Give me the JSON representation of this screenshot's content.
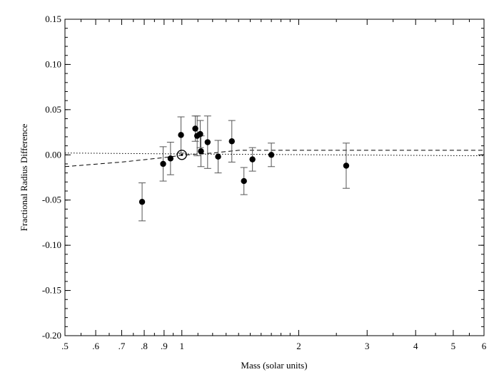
{
  "chart_data": {
    "type": "scatter",
    "title": "",
    "xlabel": "Mass (solar units)",
    "ylabel": "Fractional Radius Difference",
    "x_scale": "log",
    "xlim": [
      0.5,
      6
    ],
    "ylim": [
      -0.2,
      0.15
    ],
    "x_ticks": [
      {
        "value": 0.5,
        "label": ".5"
      },
      {
        "value": 0.6,
        "label": ".6"
      },
      {
        "value": 0.7,
        "label": ".7"
      },
      {
        "value": 0.8,
        "label": ".8"
      },
      {
        "value": 0.9,
        "label": ".9"
      },
      {
        "value": 1,
        "label": "1"
      },
      {
        "value": 2,
        "label": "2"
      },
      {
        "value": 3,
        "label": "3"
      },
      {
        "value": 4,
        "label": "4"
      },
      {
        "value": 5,
        "label": "5"
      },
      {
        "value": 6,
        "label": "6"
      }
    ],
    "y_ticks": [
      {
        "value": 0.15,
        "label": "0.15"
      },
      {
        "value": 0.1,
        "label": "0.10"
      },
      {
        "value": 0.05,
        "label": "0.05"
      },
      {
        "value": 0.0,
        "label": "0.00"
      },
      {
        "value": -0.05,
        "label": "-0.05"
      },
      {
        "value": -0.1,
        "label": "-0.10"
      },
      {
        "value": -0.15,
        "label": "-0.15"
      },
      {
        "value": -0.2,
        "label": "-0.20"
      }
    ],
    "grid": false,
    "points": [
      {
        "x": 0.79,
        "y": -0.052,
        "err": 0.021
      },
      {
        "x": 0.895,
        "y": -0.01,
        "err": 0.019
      },
      {
        "x": 0.935,
        "y": -0.004,
        "err": 0.018
      },
      {
        "x": 0.995,
        "y": 0.022,
        "err": 0.02
      },
      {
        "x": 1.083,
        "y": 0.029,
        "err": 0.014
      },
      {
        "x": 1.095,
        "y": 0.021,
        "err": 0.022
      },
      {
        "x": 1.115,
        "y": 0.023,
        "err": 0.015
      },
      {
        "x": 1.12,
        "y": 0.004,
        "err": 0.017
      },
      {
        "x": 1.165,
        "y": 0.014,
        "err": 0.029
      },
      {
        "x": 1.24,
        "y": -0.002,
        "err": 0.018
      },
      {
        "x": 1.345,
        "y": 0.015,
        "err": 0.023
      },
      {
        "x": 1.445,
        "y": -0.029,
        "err": 0.015
      },
      {
        "x": 1.52,
        "y": -0.005,
        "err": 0.013
      },
      {
        "x": 1.7,
        "y": 0.0,
        "err": 0.013
      },
      {
        "x": 2.65,
        "y": -0.012,
        "err": 0.025
      }
    ],
    "sun": {
      "x": 1.0,
      "y": 0.0
    },
    "curves": [
      {
        "style": "dotted",
        "x": [
          0.5,
          1.0,
          6.0
        ],
        "y": [
          0.002,
          0.001,
          -0.001
        ]
      },
      {
        "style": "dashed",
        "x": [
          0.5,
          0.7,
          0.9,
          1.0,
          1.2,
          1.4,
          2.0,
          3.0,
          6.0
        ],
        "y": [
          -0.013,
          -0.008,
          -0.003,
          -0.0005,
          0.002,
          0.005,
          0.005,
          0.005,
          0.005
        ]
      }
    ]
  }
}
